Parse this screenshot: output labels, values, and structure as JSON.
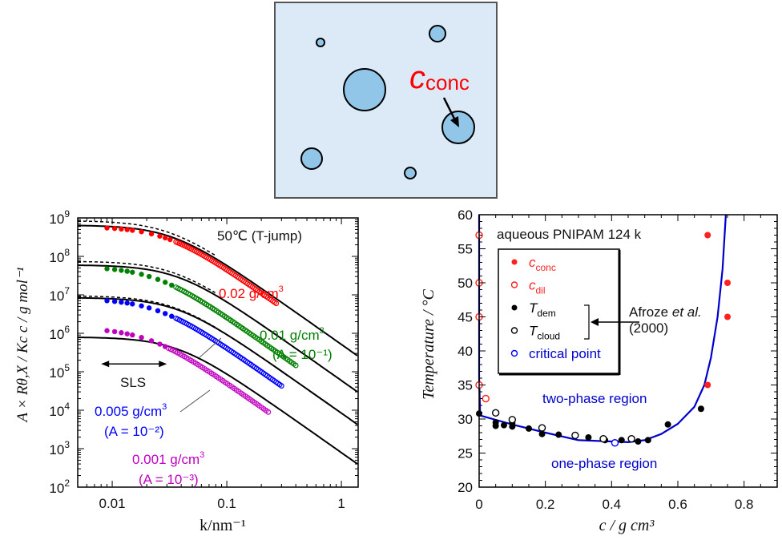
{
  "schematic": {
    "label_main": "c",
    "label_sub": "conc",
    "label_color": "#ff0000",
    "background_color": "#dbeaf6",
    "droplet_color": "#92c6e8"
  },
  "chart_data": [
    {
      "type": "scatter",
      "title": "50℃ (T-jump)",
      "xlabel": "k/nm⁻¹",
      "ylabel": "A × Rθ,X / Kc c / g mol⁻¹",
      "xscale": "log",
      "yscale": "log",
      "xlim": [
        0.005,
        1.4
      ],
      "ylim": [
        100,
        1000000000
      ],
      "xticks": [
        {
          "v": 0.01,
          "label": "0.01"
        },
        {
          "v": 0.1,
          "label": "0.1"
        },
        {
          "v": 1,
          "label": "1"
        }
      ],
      "yticks": [
        {
          "v": 100,
          "base": "10",
          "exp": "2"
        },
        {
          "v": 1000,
          "base": "10",
          "exp": "3"
        },
        {
          "v": 10000,
          "base": "10",
          "exp": "4"
        },
        {
          "v": 100000,
          "base": "10",
          "exp": "5"
        },
        {
          "v": 1000000,
          "base": "10",
          "exp": "6"
        },
        {
          "v": 10000000,
          "base": "10",
          "exp": "7"
        },
        {
          "v": 100000000,
          "base": "10",
          "exp": "8"
        },
        {
          "v": 1000000000,
          "base": "10",
          "exp": "9"
        }
      ],
      "annotations": {
        "sls_label": "SLS",
        "sls_range": [
          0.008,
          0.03
        ]
      },
      "series": [
        {
          "name": "0.02 g/cm3",
          "label_main": "0.02 g/cm",
          "label_sup": "3",
          "A_label": "",
          "color": "#ff0000",
          "I0": 600000000,
          "Rg": 33,
          "Ifit0": 650000000,
          "Rfit": 30,
          "dash0": 850000000,
          "filled_k": [
            0.009,
            0.0105,
            0.012,
            0.0135,
            0.015,
            0.018,
            0.022,
            0.026,
            0.029,
            0.032
          ],
          "open_kmin": 0.036,
          "open_kmax": 0.27
        },
        {
          "name": "0.01 g/cm3",
          "label_main": "0.01 g/cm",
          "label_sup": "3",
          "A_label": "(A = 10⁻¹)",
          "color": "#008000",
          "I0": 55000000,
          "Rg": 42,
          "Ifit0": 60000000,
          "Rfit": 27,
          "dash0": 75000000,
          "filled_k": [
            0.009,
            0.0105,
            0.012,
            0.0135,
            0.015,
            0.018,
            0.021,
            0.025,
            0.029,
            0.033
          ],
          "open_kmin": 0.036,
          "open_kmax": 0.4
        },
        {
          "name": "0.005 g/cm3",
          "label_main": "0.005 g/cm",
          "label_sup": "3",
          "A_label": "(A = 10⁻²)",
          "color": "#0000ff",
          "I0": 8000000,
          "Rg": 40,
          "Ifit0": 8500000,
          "Rfit": 27,
          "dash0": 9500000,
          "filled_k": [
            0.009,
            0.0105,
            0.012,
            0.0135,
            0.015,
            0.018,
            0.021,
            0.025,
            0.029,
            0.033
          ],
          "open_kmin": 0.036,
          "open_kmax": 0.3
        },
        {
          "name": "0.001 g/cm3",
          "label_main": "0.001 g/cm",
          "label_sup": "3",
          "A_label": "(A = 10⁻³)",
          "color": "#c000c0",
          "I0": 1400000,
          "Rg": 48,
          "Ifit0": 800000,
          "Rfit": 27,
          "dash0": 0,
          "filled_k": [
            0.009,
            0.0105,
            0.012,
            0.0135,
            0.015,
            0.018,
            0.022,
            0.026,
            0.029
          ],
          "open_kmin": 0.031,
          "open_kmax": 0.23
        }
      ]
    },
    {
      "type": "scatter",
      "title": "aqueous PNIPAM 124 k",
      "xlabel": "c / g cm³",
      "ylabel": "Temperature / °C",
      "xlim": [
        0,
        0.9
      ],
      "ylim": [
        20,
        60
      ],
      "xticks": [
        {
          "v": 0,
          "label": "0"
        },
        {
          "v": 0.2,
          "label": "0.2"
        },
        {
          "v": 0.4,
          "label": "0.4"
        },
        {
          "v": 0.6,
          "label": "0.6"
        },
        {
          "v": 0.8,
          "label": "0.8"
        }
      ],
      "yticks": [
        {
          "v": 20,
          "label": "20"
        },
        {
          "v": 25,
          "label": "25"
        },
        {
          "v": 30,
          "label": "30"
        },
        {
          "v": 35,
          "label": "35"
        },
        {
          "v": 40,
          "label": "40"
        },
        {
          "v": 45,
          "label": "45"
        },
        {
          "v": 50,
          "label": "50"
        },
        {
          "v": 55,
          "label": "55"
        },
        {
          "v": 60,
          "label": "60"
        }
      ],
      "region_labels": {
        "two_phase": "two-phase region",
        "one_phase": "one-phase region",
        "color": "#0000cc"
      },
      "reference": {
        "text_main": "Afroze ",
        "text_italic": "et al.",
        "text_year": "(2000)"
      },
      "legend": [
        {
          "key": "c_conc",
          "main": "c",
          "sub": "conc",
          "color": "#ff2020",
          "marker": "filled",
          "label_color": "#ff2020"
        },
        {
          "key": "c_dil",
          "main": "c",
          "sub": "dil",
          "color": "#ff2020",
          "marker": "open",
          "label_color": "#ff2020"
        },
        {
          "key": "T_dem",
          "main": "T",
          "sub": "dem",
          "color": "#000000",
          "marker": "filled",
          "label_color": "#000000"
        },
        {
          "key": "T_cloud",
          "main": "T",
          "sub": "cloud",
          "color": "#000000",
          "marker": "open",
          "label_color": "#000000"
        },
        {
          "key": "critical",
          "main": "critical point",
          "sub": "",
          "color": "#0000ff",
          "marker": "open",
          "label_color": "#0000cc"
        }
      ],
      "series": [
        {
          "name": "c_conc",
          "color": "#ff2020",
          "marker": "filled",
          "points": [
            [
              0.69,
              57
            ],
            [
              0.75,
              50
            ],
            [
              0.75,
              45
            ],
            [
              0.69,
              35
            ]
          ]
        },
        {
          "name": "c_dil",
          "color": "#ff2020",
          "marker": "open",
          "points": [
            [
              0.0,
              57
            ],
            [
              0.0,
              50
            ],
            [
              0.0,
              45
            ],
            [
              0.0,
              35
            ],
            [
              0.02,
              33
            ]
          ]
        },
        {
          "name": "T_dem",
          "color": "#000000",
          "marker": "filled",
          "points": [
            [
              0.0,
              30.8
            ],
            [
              0.05,
              29.5
            ],
            [
              0.05,
              29.0
            ],
            [
              0.075,
              29.1
            ],
            [
              0.1,
              29.4
            ],
            [
              0.1,
              28.9
            ],
            [
              0.15,
              28.6
            ],
            [
              0.19,
              27.8
            ],
            [
              0.24,
              27.7
            ],
            [
              0.33,
              27.3
            ],
            [
              0.38,
              26.9
            ],
            [
              0.43,
              26.9
            ],
            [
              0.48,
              26.7
            ],
            [
              0.51,
              26.9
            ],
            [
              0.57,
              29.2
            ],
            [
              0.67,
              31.5
            ]
          ]
        },
        {
          "name": "T_cloud",
          "color": "#000000",
          "marker": "open",
          "points": [
            [
              0.05,
              30.9
            ],
            [
              0.1,
              29.9
            ],
            [
              0.19,
              28.7
            ],
            [
              0.29,
              27.6
            ],
            [
              0.375,
              27.1
            ],
            [
              0.46,
              27.1
            ]
          ]
        },
        {
          "name": "critical",
          "color": "#0000ff",
          "marker": "open",
          "points": [
            [
              0.41,
              26.5
            ]
          ]
        }
      ],
      "binodal": [
        [
          0.0,
          60
        ],
        [
          0.0,
          36
        ],
        [
          0.003,
          31
        ],
        [
          0.005,
          30.5
        ],
        [
          0.1,
          29.2
        ],
        [
          0.2,
          28.0
        ],
        [
          0.3,
          26.9
        ],
        [
          0.4,
          26.7
        ],
        [
          0.45,
          26.6
        ],
        [
          0.5,
          26.9
        ],
        [
          0.55,
          27.8
        ],
        [
          0.6,
          29.3
        ],
        [
          0.65,
          31.8
        ],
        [
          0.68,
          35
        ],
        [
          0.7,
          39
        ],
        [
          0.72,
          45
        ],
        [
          0.735,
          52
        ],
        [
          0.745,
          60
        ]
      ],
      "binodal_color": "#0000cc"
    }
  ]
}
